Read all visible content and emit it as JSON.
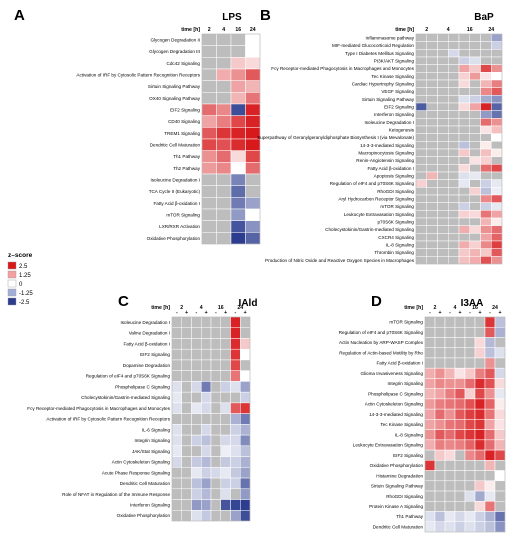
{
  "chart_data": [
    {
      "type": "heatmap",
      "panel": "A",
      "title": "LPS",
      "time_label": "time [h]",
      "times": [
        "2",
        "4",
        "16",
        "24"
      ],
      "subtimes": [],
      "rows": [
        "Glycogen Degradation II",
        "Glycogen Degradation III",
        "Cdc42 Signaling",
        "Activation of IRF by Cytosolic Pattern Recognition Receptors",
        "Sirtuin Signaling Pathway",
        "OX40 Signaling Pathway",
        "EIF2 Signaling",
        "CD40 Signaling",
        "TREM1 Signaling",
        "Dendritic Cell Maturation",
        "Th1 Pathway",
        "Th2 Pathway",
        "Isoleucine Degradation I",
        "TCA Cycle II (Eukaryotic)",
        "Fatty Acid β-oxidation I",
        "mTOR Signaling",
        "LXR/RXR Activation",
        "Oxidative Phosphorylation"
      ],
      "values": [
        [
          null,
          null,
          null,
          0
        ],
        [
          null,
          null,
          null,
          0
        ],
        [
          null,
          null,
          0.6,
          0.4
        ],
        [
          null,
          0.9,
          1.2,
          1.8
        ],
        [
          null,
          null,
          1.0,
          0.8
        ],
        [
          null,
          null,
          0.8,
          1.5
        ],
        [
          1.6,
          1.3,
          -2.3,
          2.4
        ],
        [
          1.0,
          1.4,
          2.0,
          2.4
        ],
        [
          1.8,
          2.2,
          2.4,
          2.5
        ],
        [
          2.0,
          1.9,
          2.3,
          2.5
        ],
        [
          1.2,
          1.6,
          0.4,
          2.0
        ],
        [
          1.1,
          1.3,
          0,
          1.6
        ],
        [
          null,
          null,
          -1.6,
          null
        ],
        [
          null,
          null,
          -1.9,
          null
        ],
        [
          null,
          null,
          -1.7,
          -1.2
        ],
        [
          null,
          null,
          -1.3,
          0
        ],
        [
          null,
          null,
          -2.2,
          -1.4
        ],
        [
          null,
          null,
          -2.5,
          -2.0
        ]
      ]
    },
    {
      "type": "heatmap",
      "panel": "B",
      "title": "BaP",
      "time_label": "time [h]",
      "times": [
        "2",
        "4",
        "16",
        "24"
      ],
      "subtimes": [],
      "rows": [
        "Inflammasome pathway",
        "MIF-mediated Glucocorticoid Regulation",
        "Type I Diabetes Mellitus Signaling",
        "PI3K/AKT Signaling",
        "Fcγ Receptor-mediated Phagocytosis in Macrophages and Monocytes",
        "Tec Kinase Signaling",
        "Cardiac Hypertrophy Signaling",
        "VEGF Signaling",
        "Sirtuin Signaling Pathway",
        "EIF2 Signaling",
        "Interferon Signaling",
        "Isoleucine Degradation I",
        "Ketogenesis",
        "Superpathway of Geranylgeranyldiphosphate Biosynthesis I (via Mevalonate)",
        "14-3-3-mediated Signaling",
        "Macropinocytosis Signaling",
        "Renin-Angiotensin Signaling",
        "Fatty Acid β-oxidation I",
        "Apoptosis Signaling",
        "Regulation of eIF4 and p70S6K Signaling",
        "RhoGDI Signaling",
        "Aryl Hydrocarbon Receptor Signaling",
        "mTOR Signaling",
        "Leukocyte Extravasation Signaling",
        "p70S6K Signaling",
        "Cholecystokinin/Gastrin-mediated Signaling",
        "CXCR4 Signaling",
        "IL-8 Signaling",
        "Thrombin Signaling",
        "Production of Nitric Oxide and Reactive Oxygen Species in Macrophages"
      ],
      "values": [
        [
          null,
          null,
          null,
          null,
          null,
          null,
          null,
          -1.2
        ],
        [
          null,
          null,
          null,
          null,
          null,
          null,
          null,
          -0.6
        ],
        [
          null,
          null,
          null,
          -0.5,
          null,
          null,
          null,
          null
        ],
        [
          null,
          null,
          null,
          null,
          -0.6,
          -0.4,
          null,
          null
        ],
        [
          null,
          null,
          null,
          null,
          1.0,
          0.6,
          2.0,
          1.2
        ],
        [
          null,
          null,
          null,
          null,
          0.5,
          1.1,
          0.3,
          0
        ],
        [
          null,
          null,
          null,
          null,
          0.4,
          null,
          0.8,
          1.4
        ],
        [
          null,
          null,
          null,
          null,
          null,
          null,
          1.3,
          1.8
        ],
        [
          null,
          null,
          null,
          null,
          -0.4,
          -0.6,
          -1.1,
          -1.4
        ],
        [
          -2.1,
          null,
          null,
          null,
          0.4,
          1.0,
          2.4,
          -2.0
        ],
        [
          null,
          null,
          null,
          null,
          null,
          null,
          -1.3,
          -1.8
        ],
        [
          null,
          null,
          null,
          null,
          null,
          null,
          1.6,
          1.2
        ],
        [
          null,
          null,
          null,
          null,
          null,
          null,
          0.3,
          0.7
        ],
        [
          null,
          null,
          null,
          null,
          null,
          null,
          null,
          0
        ],
        [
          null,
          null,
          null,
          null,
          -0.8,
          null,
          0.2,
          null
        ],
        [
          null,
          null,
          null,
          null,
          0.6,
          null,
          0.7,
          0.2
        ],
        [
          null,
          null,
          null,
          null,
          null,
          0.3,
          0.5,
          null
        ],
        [
          null,
          null,
          null,
          null,
          0.4,
          null,
          1.6,
          2.0
        ],
        [
          null,
          0.8,
          null,
          null,
          -0.4,
          -0.3,
          null,
          null
        ],
        [
          0.5,
          null,
          null,
          null,
          -0.3,
          null,
          -0.6,
          -0.3
        ],
        [
          null,
          null,
          null,
          null,
          null,
          0.5,
          -0.8,
          -0.2
        ],
        [
          null,
          null,
          null,
          null,
          null,
          null,
          1.3,
          1.8
        ],
        [
          null,
          null,
          null,
          null,
          -0.6,
          null,
          -0.6,
          -0.3
        ],
        [
          null,
          null,
          null,
          null,
          0.5,
          0.4,
          1.5,
          1.0
        ],
        [
          null,
          null,
          null,
          null,
          null,
          null,
          0.8,
          0.2
        ],
        [
          null,
          null,
          null,
          null,
          0.9,
          0.4,
          1.2,
          1.6
        ],
        [
          null,
          null,
          null,
          null,
          null,
          null,
          1.0,
          1.7
        ],
        [
          null,
          null,
          null,
          null,
          0.9,
          0.5,
          1.3,
          2.1
        ],
        [
          null,
          null,
          null,
          null,
          0.6,
          0.8,
          0.6,
          1.8
        ],
        [
          null,
          null,
          null,
          null,
          0.7,
          0.9,
          1.9,
          1.2
        ]
      ]
    },
    {
      "type": "heatmap",
      "panel": "C",
      "title": "IAld",
      "time_label": "time [h]",
      "times": [
        "2",
        "4",
        "16",
        "24"
      ],
      "subtimes": [
        "-",
        "+",
        "-",
        "+",
        "-",
        "+",
        "-",
        "+"
      ],
      "rows": [
        "Isoleucine Degradation I",
        "Valine Degradation I",
        "Fatty Acid β-oxidation I",
        "EIF2 Signaling",
        "Dopamine Degradation",
        "Regulation of eIF4 and p70S6K Signaling",
        "Phospholipase C Signaling",
        "Cholecystokinin/Gastrin-mediated Signaling",
        "Fcγ Receptor-mediated Phagocytosis in Macrophages and Monocytes",
        "Activation of IRF by Cytosolic Pattern Recognition Receptors",
        "IL-6 Signaling",
        "Integrin Signaling",
        "JAK/Stat Signaling",
        "Actin Cytoskeleton Signaling",
        "Acute Phase Response Signaling",
        "Dendritic Cell Maturation",
        "Role of NFAT in Regulation of the Immune Response",
        "Interferon Signaling",
        "Oxidative Phosphorylation"
      ],
      "values": [
        [
          null,
          null,
          null,
          null,
          null,
          null,
          2.4,
          null
        ],
        [
          null,
          null,
          null,
          null,
          null,
          null,
          2.4,
          null
        ],
        [
          null,
          null,
          null,
          null,
          null,
          null,
          2.3,
          0.6
        ],
        [
          null,
          null,
          null,
          null,
          null,
          null,
          2.2,
          0
        ],
        [
          null,
          null,
          null,
          null,
          null,
          null,
          2.0,
          null
        ],
        [
          null,
          null,
          null,
          null,
          null,
          null,
          1.5,
          0
        ],
        [
          -0.4,
          null,
          -0.5,
          -1.7,
          null,
          -0.6,
          -0.4,
          -1.2
        ],
        [
          -0.3,
          null,
          null,
          -0.5,
          null,
          null,
          null,
          -0.6
        ],
        [
          -0.4,
          null,
          -0.3,
          -0.5,
          null,
          -0.4,
          1.8,
          2.2
        ],
        [
          null,
          null,
          null,
          null,
          null,
          null,
          -1.0,
          -1.7
        ],
        [
          -0.4,
          null,
          null,
          -0.5,
          null,
          null,
          -0.6,
          -1.0
        ],
        [
          -0.4,
          null,
          -0.6,
          -0.8,
          null,
          -0.5,
          -0.5,
          -1.5
        ],
        [
          -0.3,
          null,
          null,
          -0.5,
          null,
          -0.2,
          -0.4,
          -0.8
        ],
        [
          -0.5,
          null,
          -0.7,
          -0.9,
          null,
          -0.7,
          -0.6,
          -1.0
        ],
        [
          null,
          null,
          -0.3,
          -0.6,
          -0.5,
          -0.3,
          -0.7,
          -1.2
        ],
        [
          null,
          null,
          -0.8,
          -1.2,
          null,
          -0.6,
          -0.6,
          -1.8
        ],
        [
          null,
          null,
          -0.6,
          -0.9,
          null,
          -0.4,
          null,
          -1.3
        ],
        [
          null,
          null,
          -1.3,
          -1.2,
          null,
          -2.2,
          -2.4,
          -2.5
        ],
        [
          null,
          null,
          -0.4,
          -0.7,
          null,
          null,
          -1.2,
          -2.3
        ]
      ]
    },
    {
      "type": "heatmap",
      "panel": "D",
      "title": "I3AA",
      "time_label": "time [h]",
      "times": [
        "2",
        "4",
        "16",
        "24"
      ],
      "subtimes": [
        "-",
        "+",
        "-",
        "+",
        "-",
        "+",
        "-",
        "+"
      ],
      "rows": [
        "mTOR Signaling",
        "Regulation of eIF4 and p70S6K Signaling",
        "Actin Nucleation by ARP-WASP Complex",
        "Regulation of Actin-based Motility by Rho",
        "Fatty Acid β-oxidation I",
        "Glioma Invasiveness Signaling",
        "Integrin Signaling",
        "Phospholipase C Signaling",
        "Actin Cytoskeleton Signaling",
        "14-3-3-mediated Signaling",
        "Tec Kinase Signaling",
        "IL-8 Signaling",
        "Leukocyte Extravasation Signaling",
        "EIF2 Signaling",
        "Oxidative Phosphorylation",
        "Histamine Degradation",
        "Sirtuin Signaling Pathway",
        "RhoGDI Signaling",
        "Protein Kinase A Signaling",
        "Th1 Pathway",
        "Dendritic Cell Maturation"
      ],
      "values": [
        [
          null,
          null,
          null,
          null,
          null,
          null,
          2.2,
          -0.8
        ],
        [
          null,
          null,
          null,
          null,
          null,
          null,
          1.8,
          -1.0
        ],
        [
          null,
          null,
          null,
          null,
          null,
          0.4,
          -0.9,
          null
        ],
        [
          null,
          null,
          null,
          null,
          null,
          0.5,
          -0.8,
          -0.4
        ],
        [
          null,
          null,
          null,
          null,
          null,
          null,
          1.2,
          null
        ],
        [
          0.9,
          1.2,
          0.8,
          0.3,
          0.6,
          1.4,
          1.8,
          -0.5
        ],
        [
          1.0,
          1.3,
          1.2,
          1.2,
          1.6,
          2.3,
          1.9,
          0.4
        ],
        [
          0.8,
          1.0,
          1.4,
          1.8,
          0.5,
          2.0,
          1.2,
          -0.3
        ],
        [
          1.1,
          1.4,
          1.5,
          1.6,
          1.9,
          2.4,
          1.7,
          0.2
        ],
        [
          1.0,
          1.6,
          1.2,
          1.8,
          2.1,
          2.3,
          1.5,
          0.4
        ],
        [
          1.0,
          1.2,
          1.5,
          1.6,
          2.0,
          2.2,
          1.0,
          0.3
        ],
        [
          1.2,
          1.8,
          1.6,
          2.0,
          2.2,
          2.4,
          1.6,
          0.6
        ],
        [
          0.9,
          1.4,
          1.3,
          1.4,
          1.7,
          2.3,
          1.6,
          0.8
        ],
        [
          null,
          0.6,
          0.4,
          null,
          1.3,
          1.6,
          2.4,
          2.0
        ],
        [
          2.2,
          null,
          null,
          null,
          null,
          null,
          0.8,
          null
        ],
        [
          null,
          null,
          null,
          null,
          null,
          null,
          null,
          0
        ],
        [
          null,
          null,
          null,
          null,
          null,
          0.6,
          0.2,
          null
        ],
        [
          null,
          null,
          null,
          null,
          -0.4,
          -1.1,
          -0.3,
          null
        ],
        [
          null,
          null,
          null,
          null,
          null,
          0.4,
          1.5,
          null
        ],
        [
          -0.4,
          -0.8,
          -0.3,
          -0.5,
          -0.3,
          -0.6,
          -1.0,
          -1.8
        ],
        [
          -0.3,
          -0.5,
          -0.4,
          -0.6,
          -0.4,
          -0.6,
          -0.8,
          -1.4
        ]
      ]
    }
  ],
  "legend": {
    "title": "z–score",
    "items": [
      {
        "label": "2.5",
        "color": "#d7191c"
      },
      {
        "label": "1.25",
        "color": "#f4a0a0"
      },
      {
        "label": "0",
        "color": "#ffffff"
      },
      {
        "label": "-1.25",
        "color": "#a3aed8"
      },
      {
        "label": "-2.5",
        "color": "#2c3d8f"
      }
    ]
  },
  "colors": {
    "missing": "#bdbdbd",
    "positive": "#d7191c",
    "negative": "#2c3d8f",
    "grid": "#ffffff"
  }
}
